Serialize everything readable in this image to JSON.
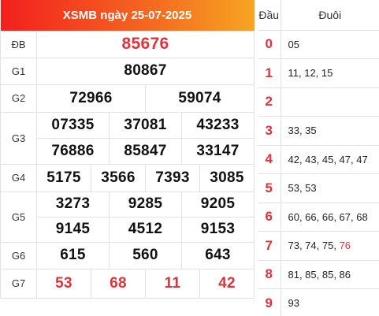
{
  "header": {
    "title": "XSMB ngày 25-07-2025"
  },
  "prizes": {
    "db": {
      "label": "ĐB",
      "numbers": [
        "85676"
      ]
    },
    "g1": {
      "label": "G1",
      "numbers": [
        "80867"
      ]
    },
    "g2": {
      "label": "G2",
      "numbers": [
        "72966",
        "59074"
      ]
    },
    "g3": {
      "label": "G3",
      "numbers": [
        "07335",
        "37081",
        "43233",
        "76886",
        "85847",
        "33147"
      ]
    },
    "g4": {
      "label": "G4",
      "numbers": [
        "5175",
        "3566",
        "7393",
        "3085"
      ]
    },
    "g5": {
      "label": "G5",
      "numbers": [
        "3273",
        "9285",
        "9205",
        "9145",
        "4512",
        "9153"
      ]
    },
    "g6": {
      "label": "G6",
      "numbers": [
        "615",
        "560",
        "643"
      ]
    },
    "g7": {
      "label": "G7",
      "numbers": [
        "53",
        "68",
        "11",
        "42"
      ]
    }
  },
  "dauduoi": {
    "head_label": "Đầu",
    "tail_label": "Đuôi",
    "rows": [
      {
        "dau": "0",
        "duoi": "05"
      },
      {
        "dau": "1",
        "duoi": "11, 12, 15"
      },
      {
        "dau": "2",
        "duoi": ""
      },
      {
        "dau": "3",
        "duoi": "33, 35"
      },
      {
        "dau": "4",
        "duoi": "42, 43, 45, 47, 47"
      },
      {
        "dau": "5",
        "duoi": "53, 53"
      },
      {
        "dau": "6",
        "duoi": "60, 66, 66, 67, 68"
      },
      {
        "dau": "7",
        "duoi": "73, 74, 75, ",
        "duoi_highlight": "76"
      },
      {
        "dau": "8",
        "duoi": "81, 85, 85, 86"
      },
      {
        "dau": "9",
        "duoi": "93"
      }
    ]
  },
  "colors": {
    "accent_red": "#e0323a",
    "header_gradient_start": "#f31f1f",
    "header_gradient_end": "#f7a521"
  }
}
